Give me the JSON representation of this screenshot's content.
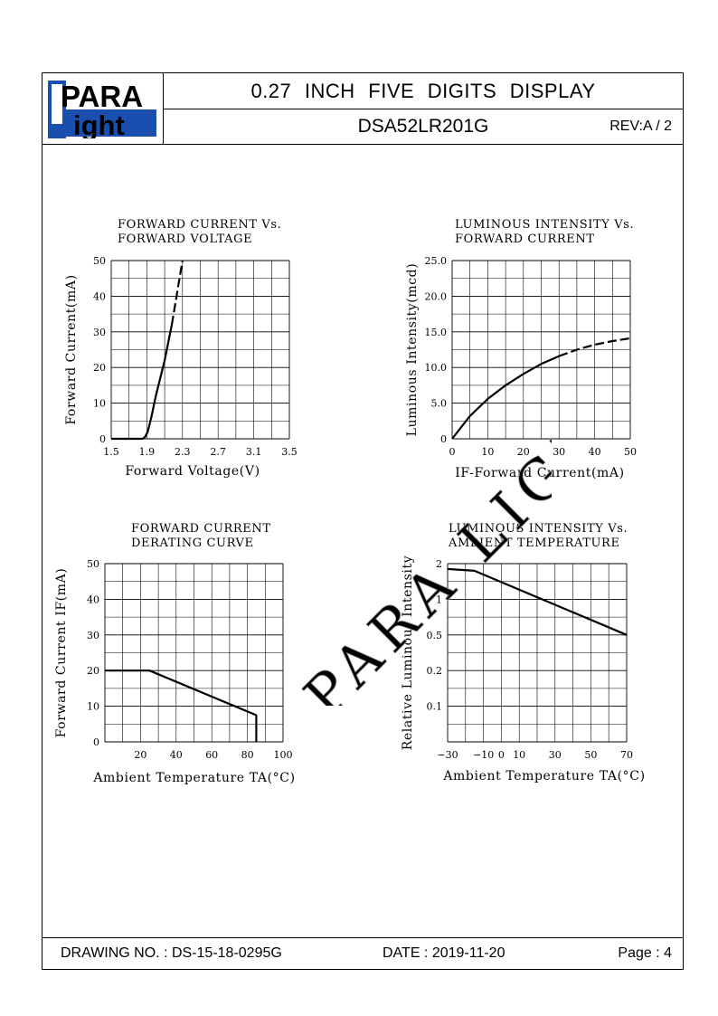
{
  "header": {
    "logo_top": "PARA",
    "logo_bottom": "ight",
    "logo_letter": "L",
    "title": "0.27  INCH  FIVE  DIGITS  DISPLAY",
    "part_number": "DSA52LR201G",
    "revision": "REV:A / 2"
  },
  "footer": {
    "drawing_no": "DRAWING NO. : DS-15-18-0295G",
    "date": "DATE : 2019-11-20",
    "page": "Page : 4"
  },
  "watermark": "PARA LIGHT",
  "chart_data": [
    {
      "type": "line",
      "title": "FORWARD CURRENT Vs.\nFORWARD VOLTAGE",
      "title_lines": [
        "FORWARD CURRENT Vs.",
        "FORWARD VOLTAGE"
      ],
      "xlabel": "Forward Voltage(V)",
      "ylabel": "Forward Current(mA)",
      "xlim": [
        1.5,
        3.5
      ],
      "ylim": [
        0,
        50
      ],
      "xticks": [
        1.5,
        1.9,
        2.3,
        2.7,
        3.1,
        3.5
      ],
      "xtick_labels": [
        "1.5",
        "1.9",
        "2.3",
        "2.7",
        "3.1",
        "3.5"
      ],
      "yticks": [
        0,
        10,
        20,
        30,
        40,
        50
      ],
      "ytick_labels": [
        "0",
        "10",
        "20",
        "30",
        "40",
        "50"
      ],
      "grid": true,
      "series": [
        {
          "x": [
            1.5,
            1.85,
            1.88,
            1.91,
            1.95,
            2.0,
            2.1,
            2.18
          ],
          "y": [
            0,
            0,
            0.5,
            2,
            6,
            12,
            22,
            32
          ],
          "style": "solid"
        },
        {
          "x": [
            2.18,
            2.3
          ],
          "y": [
            32,
            50
          ],
          "style": "dashed"
        }
      ]
    },
    {
      "type": "line",
      "title": "LUMINOUS INTENSITY Vs.\nFORWARD CURRENT",
      "title_lines": [
        "LUMINOUS INTENSITY Vs.",
        "FORWARD CURRENT"
      ],
      "xlabel": "IF-Forward Current(mA)",
      "ylabel": "Luminous Intensity(mcd)",
      "xlim": [
        0,
        50
      ],
      "ylim": [
        0,
        25
      ],
      "xticks": [
        0,
        10,
        20,
        30,
        40,
        50
      ],
      "xtick_labels": [
        "0",
        "10",
        "20",
        "30",
        "40",
        "50"
      ],
      "yticks": [
        0,
        5,
        10,
        15,
        20,
        25
      ],
      "ytick_labels": [
        "0",
        "5.0",
        "10.0",
        "15.0",
        "20.0",
        "25.0"
      ],
      "grid": true,
      "series": [
        {
          "x": [
            0,
            5,
            10,
            15,
            20,
            25,
            30
          ],
          "y": [
            0,
            3.2,
            5.6,
            7.5,
            9.1,
            10.5,
            11.6
          ],
          "style": "solid"
        },
        {
          "x": [
            30,
            35,
            40,
            45,
            50
          ],
          "y": [
            11.6,
            12.5,
            13.2,
            13.7,
            14.1
          ],
          "style": "dashed"
        }
      ]
    },
    {
      "type": "line",
      "title": "FORWARD CURRENT\nDERATING CURVE",
      "title_lines": [
        "FORWARD CURRENT",
        "DERATING CURVE"
      ],
      "xlabel": "Ambient Temperature TA(°C)",
      "ylabel": "Forward Current IF(mA)",
      "xlim": [
        0,
        100
      ],
      "ylim": [
        0,
        50
      ],
      "xticks": [
        20,
        40,
        60,
        80,
        100
      ],
      "xtick_labels": [
        "20",
        "40",
        "60",
        "80",
        "100"
      ],
      "yticks": [
        0,
        10,
        20,
        30,
        40,
        50
      ],
      "ytick_labels": [
        "0",
        "10",
        "20",
        "30",
        "40",
        "50"
      ],
      "grid": true,
      "series": [
        {
          "x": [
            0,
            25,
            85,
            85
          ],
          "y": [
            20,
            20,
            7.5,
            0
          ],
          "style": "solid"
        }
      ]
    },
    {
      "type": "line",
      "title": "LUMINOUS INTENSITY Vs.\nAMBIENT TEMPERATURE",
      "title_lines": [
        "LUMINOUS INTENSITY Vs.",
        "AMBIENT TEMPERATURE"
      ],
      "xlabel": "Ambient Temperature TA(°C)",
      "ylabel": "Relative Luminous Intensity",
      "xlim": [
        -30,
        70
      ],
      "ylim": [
        0,
        5
      ],
      "xticks": [
        -30,
        -10,
        0,
        10,
        30,
        50,
        70
      ],
      "xtick_labels": [
        "-30",
        "-10",
        "0",
        "10",
        "30",
        "50",
        "70"
      ],
      "yticks": [
        1,
        2,
        3,
        4,
        5
      ],
      "ytick_labels": [
        "0.1",
        "0.2",
        "0.5",
        "1",
        "2"
      ],
      "grid": true,
      "series": [
        {
          "x": [
            -30,
            -15,
            70
          ],
          "y": [
            4.85,
            4.8,
            3.0
          ],
          "style": "solid"
        }
      ]
    }
  ]
}
